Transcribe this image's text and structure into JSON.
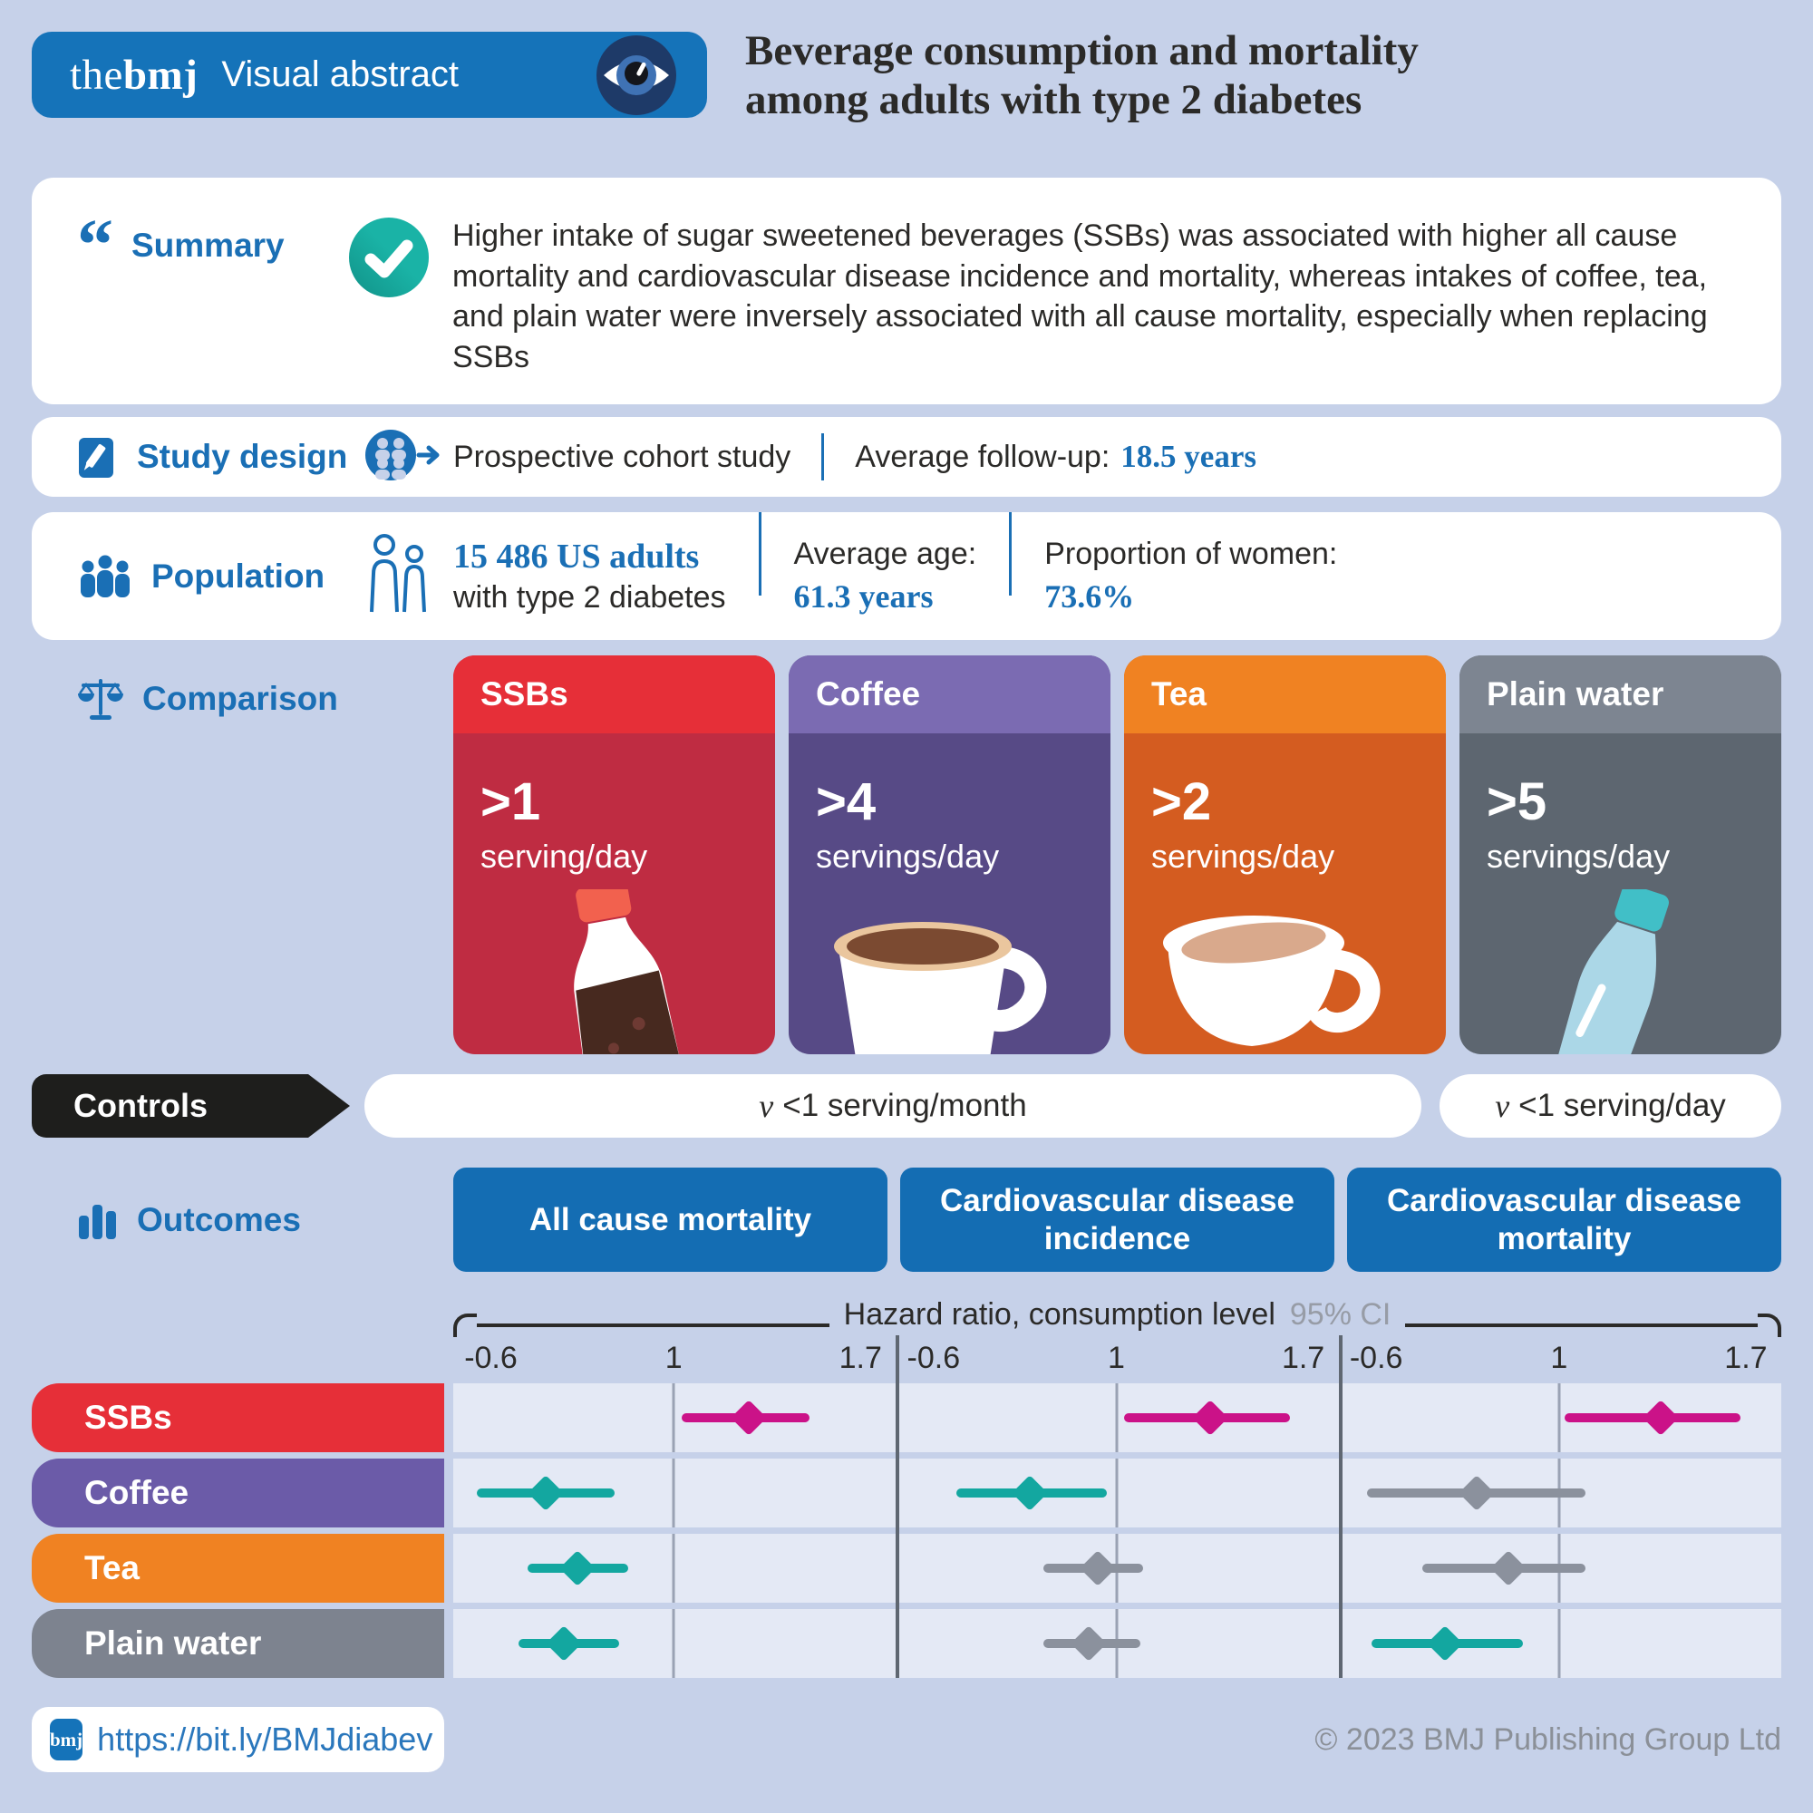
{
  "header": {
    "brand_the": "the",
    "brand_bmj": "bmj",
    "brand_sub": "Visual abstract",
    "title_line1": "Beverage consumption and mortality",
    "title_line2": "among adults with type 2 diabetes"
  },
  "summary": {
    "label": "Summary",
    "text": "Higher intake of sugar sweetened beverages (SSBs) was associated with higher all cause mortality and cardiovascular disease incidence and mortality, whereas intakes of coffee, tea, and plain water were inversely associated with all cause mortality, especially when replacing SSBs"
  },
  "study_design": {
    "label": "Study design",
    "type": "Prospective cohort study",
    "followup_label": "Average follow-up:",
    "followup_value": "18.5 years"
  },
  "population": {
    "label": "Population",
    "count": "15 486 US adults",
    "desc": "with type 2 diabetes",
    "age_label": "Average age:",
    "age_value": "61.3 years",
    "women_label": "Proportion of women:",
    "women_value": "73.6%"
  },
  "comparison": {
    "label": "Comparison",
    "cards": [
      {
        "name": "SSBs",
        "amount": ">1",
        "unit": "serving/day",
        "header_color": "#e62f38",
        "body_color": "#bf2c42",
        "illustration": "cola-bottle"
      },
      {
        "name": "Coffee",
        "amount": ">4",
        "unit": "servings/day",
        "header_color": "#7b6bb2",
        "body_color": "#574a86",
        "illustration": "coffee-cup"
      },
      {
        "name": "Tea",
        "amount": ">2",
        "unit": "servings/day",
        "header_color": "#f08222",
        "body_color": "#d45c20",
        "illustration": "tea-cup"
      },
      {
        "name": "Plain water",
        "amount": ">5",
        "unit": "servings/day",
        "header_color": "#7d8591",
        "body_color": "#5d6670",
        "illustration": "water-bottle"
      }
    ]
  },
  "controls": {
    "label": "Controls",
    "main_v": "v",
    "main_text": "<1 serving/month",
    "water_v": "v",
    "water_text": "<1 serving/day"
  },
  "outcomes": {
    "label": "Outcomes",
    "buttons": [
      "All cause mortality",
      "Cardiovascular disease incidence",
      "Cardiovascular disease mortality"
    ]
  },
  "chart_data": {
    "type": "forest",
    "title": "Hazard ratios for beverage consumption levels vs controls, by outcome",
    "panels": [
      "All cause mortality",
      "Cardiovascular disease incidence",
      "Cardiovascular disease mortality"
    ],
    "axis": {
      "label": "Hazard ratio, consumption level",
      "ci_label": "95% CI",
      "ticks": [
        "-0.6",
        "1",
        "1.7"
      ],
      "tick_values": [
        0.6,
        1,
        1.7
      ],
      "tick_pcts": [
        8.5,
        49.8,
        92
      ],
      "reference_line": 1,
      "note": "values estimated from marker positions; no numeric labels shown"
    },
    "marker_colors": {
      "magenta": "#cb1288",
      "teal": "#13a7a0",
      "gray": "#8b919d"
    },
    "rows": [
      {
        "name": "SSBs",
        "color": "#e62f38",
        "points": [
          {
            "hr": 1.28,
            "lo": 1.03,
            "hi": 1.51,
            "style": "magenta"
          },
          {
            "hr": 1.35,
            "lo": 1.03,
            "hi": 1.65,
            "style": "magenta"
          },
          {
            "hr": 1.38,
            "lo": 1.02,
            "hi": 1.68,
            "style": "magenta"
          }
        ]
      },
      {
        "name": "Coffee",
        "color": "#6b5ba8",
        "points": [
          {
            "hr": 0.72,
            "lo": 0.57,
            "hi": 0.87,
            "style": "teal"
          },
          {
            "hr": 0.81,
            "lo": 0.65,
            "hi": 0.98,
            "style": "teal"
          },
          {
            "hr": 0.82,
            "lo": 0.58,
            "hi": 1.1,
            "style": "gray"
          }
        ]
      },
      {
        "name": "Tea",
        "color": "#f08222",
        "points": [
          {
            "hr": 0.79,
            "lo": 0.68,
            "hi": 0.9,
            "style": "teal"
          },
          {
            "hr": 0.96,
            "lo": 0.84,
            "hi": 1.1,
            "style": "gray"
          },
          {
            "hr": 0.89,
            "lo": 0.7,
            "hi": 1.1,
            "style": "gray"
          }
        ]
      },
      {
        "name": "Plain water",
        "color": "#7d838f",
        "points": [
          {
            "hr": 0.76,
            "lo": 0.66,
            "hi": 0.88,
            "style": "teal"
          },
          {
            "hr": 0.94,
            "lo": 0.84,
            "hi": 1.09,
            "style": "gray"
          },
          {
            "hr": 0.75,
            "lo": 0.59,
            "hi": 0.92,
            "style": "teal"
          }
        ]
      }
    ]
  },
  "footer": {
    "badge": "bmj",
    "link": "https://bit.ly/BMJdiabev",
    "copyright": "© 2023 BMJ Publishing Group Ltd"
  }
}
